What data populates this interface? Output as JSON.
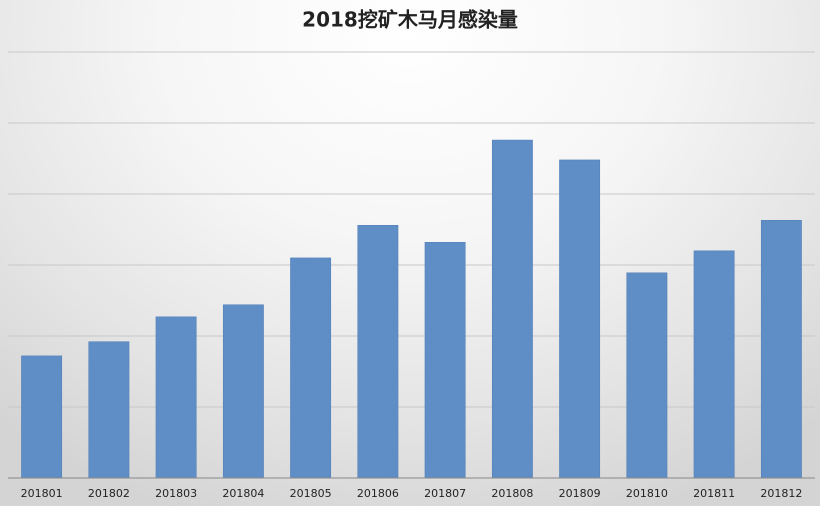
{
  "chart_data": {
    "type": "bar",
    "title": "2018挖矿木马月感染量",
    "categories": [
      "201801",
      "201802",
      "201803",
      "201804",
      "201805",
      "201806",
      "201807",
      "201808",
      "201809",
      "201810",
      "201811",
      "201812"
    ],
    "values": [
      1.72,
      1.92,
      2.27,
      2.44,
      3.1,
      3.56,
      3.32,
      4.76,
      4.48,
      2.89,
      3.2,
      3.63
    ],
    "color": "#5f8ec6",
    "ylim": [
      0,
      6
    ],
    "yticks": [
      0,
      1,
      2,
      3,
      4,
      5,
      6
    ],
    "grid": true
  }
}
